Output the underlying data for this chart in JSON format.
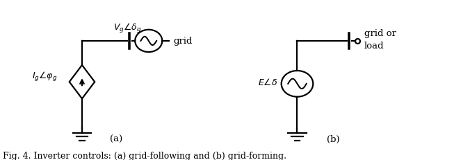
{
  "fig_caption": "Fig. 4. Inverter controls: (a) grid-following and (b) grid-forming.",
  "bg_color": "#ffffff",
  "line_color": "#000000",
  "figsize": [
    6.53,
    2.32
  ],
  "dpi": 100,
  "circuit_a": {
    "label_current": "$I_g\\angle\\varphi_g$",
    "label_voltage": "$V_g\\angle\\delta_g$",
    "label_grid": "grid",
    "label_sub": "(a)"
  },
  "circuit_b": {
    "label_emf": "$E\\angle\\delta$",
    "label_sub": "(b)",
    "label_load": "grid or\nload"
  }
}
